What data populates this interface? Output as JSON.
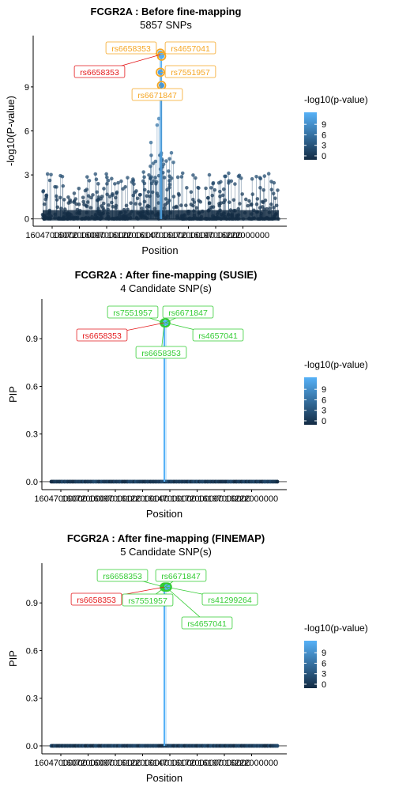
{
  "colors": {
    "gradient_low": "#132B43",
    "gradient_high": "#56B1F7",
    "lead_label_red": "#e41a1c",
    "label_orange": "#f5a623",
    "label_green": "#33cc33"
  },
  "chart_data": [
    {
      "type": "scatter",
      "title": "FCGR2A : Before fine-mapping",
      "subtitle": "5857 SNPs",
      "xlabel": "Position",
      "ylabel": "-log10(P-value)",
      "xtick_labels": [
        "16047000000",
        "16072000000",
        "16097000000",
        "16122000000",
        "16147000000",
        "16172000000",
        "16197000000",
        "16222000000"
      ],
      "yticks": [
        0,
        3,
        6,
        9
      ],
      "ylim": [
        -0.5,
        12.5
      ],
      "legend": {
        "title": "-log10(p-value)",
        "ticks": [
          "9",
          "6",
          "3",
          "0"
        ],
        "placement": "right"
      },
      "labels": [
        {
          "text": "rs6658353",
          "color": "orange",
          "y": 11.2
        },
        {
          "text": "rs4657041",
          "color": "orange",
          "y": 11.2
        },
        {
          "text": "rs6658353",
          "color": "red",
          "y": 11.2
        },
        {
          "text": "rs7551957",
          "color": "orange",
          "y": 10.0
        },
        {
          "text": "rs6671847",
          "color": "orange",
          "y": 9.1
        }
      ],
      "highlighted_points": [
        11.3,
        11.1,
        10.0,
        9.1
      ]
    },
    {
      "type": "scatter",
      "title": "FCGR2A : After fine-mapping (SUSIE)",
      "subtitle": "4 Candidate SNP(s)",
      "xlabel": "Position",
      "ylabel": "PIP",
      "xtick_labels": [
        "16047000000",
        "16072000000",
        "16097000000",
        "16122000000",
        "16147000000",
        "16172000000",
        "16197000000",
        "16222000000"
      ],
      "yticks": [
        "0.0",
        "0.3",
        "0.6",
        "0.9"
      ],
      "ylim": [
        -0.05,
        1.15
      ],
      "legend": {
        "title": "-log10(p-value)",
        "ticks": [
          "9",
          "6",
          "3",
          "0"
        ],
        "placement": "right"
      },
      "labels": [
        {
          "text": "rs7551957",
          "color": "green"
        },
        {
          "text": "rs6671847",
          "color": "green"
        },
        {
          "text": "rs6658353",
          "color": "red"
        },
        {
          "text": "rs4657041",
          "color": "green"
        },
        {
          "text": "rs6658353",
          "color": "green"
        }
      ],
      "candidate_pip": [
        1.0,
        1.0,
        1.0,
        1.0
      ]
    },
    {
      "type": "scatter",
      "title": "FCGR2A : After fine-mapping (FINEMAP)",
      "subtitle": "5 Candidate SNP(s)",
      "xlabel": "Position",
      "ylabel": "PIP",
      "xtick_labels": [
        "16047000000",
        "16072000000",
        "16097000000",
        "16122000000",
        "16147000000",
        "16172000000",
        "16197000000",
        "16222000000"
      ],
      "yticks": [
        "0.0",
        "0.3",
        "0.6",
        "0.9"
      ],
      "ylim": [
        -0.05,
        1.15
      ],
      "legend": {
        "title": "-log10(p-value)",
        "ticks": [
          "9",
          "6",
          "3",
          "0"
        ],
        "placement": "right"
      },
      "labels": [
        {
          "text": "rs6658353",
          "color": "green"
        },
        {
          "text": "rs6671847",
          "color": "green"
        },
        {
          "text": "rs6658353",
          "color": "red"
        },
        {
          "text": "rs7551957",
          "color": "green"
        },
        {
          "text": "rs41299264",
          "color": "green"
        },
        {
          "text": "rs4657041",
          "color": "green"
        }
      ],
      "candidate_pip": [
        1.0,
        1.0,
        1.0,
        1.0,
        1.0
      ]
    }
  ]
}
